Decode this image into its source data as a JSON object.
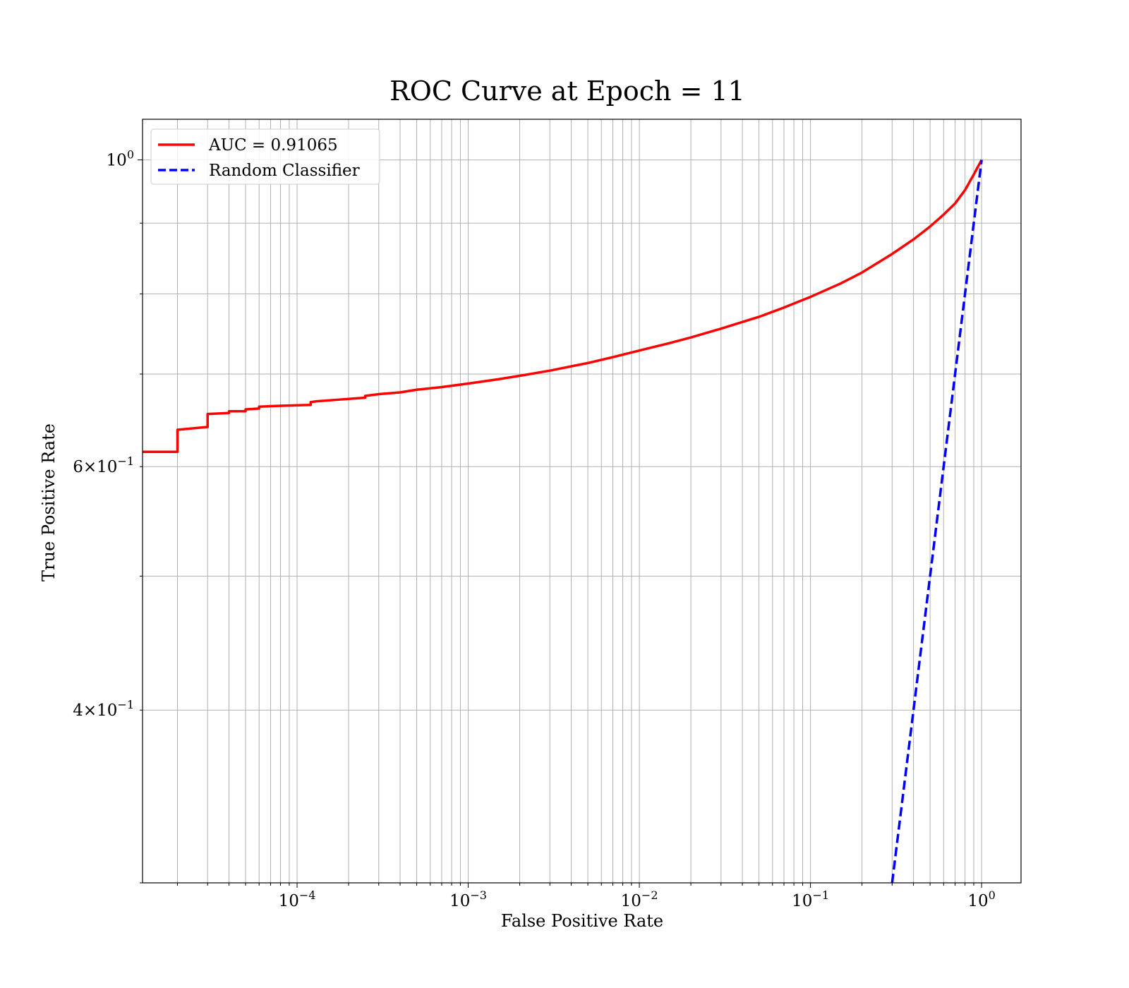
{
  "chart_data": {
    "type": "line",
    "title": "ROC Curve at Epoch = 11",
    "xlabel": "False Positive Rate",
    "ylabel": "True Positive Rate",
    "xscale": "log",
    "yscale": "log",
    "xlim": [
      1.25e-05,
      1.7
    ],
    "ylim": [
      0.3,
      1.07
    ],
    "grid": "on (major and minor, both axes)",
    "legend_position": "top-left",
    "x_ticks": [
      {
        "value": 0.0001,
        "base": "10",
        "exp": "−4"
      },
      {
        "value": 0.001,
        "base": "10",
        "exp": "−3"
      },
      {
        "value": 0.01,
        "base": "10",
        "exp": "−2"
      },
      {
        "value": 0.1,
        "base": "10",
        "exp": "−1"
      },
      {
        "value": 1,
        "base": "10",
        "exp": "0"
      }
    ],
    "y_ticks": [
      {
        "value": 1,
        "base": "10",
        "exp": "0"
      },
      {
        "value": 0.6,
        "base": "6×10",
        "exp": "−1"
      },
      {
        "value": 0.4,
        "base": "4×10",
        "exp": "−1"
      }
    ],
    "series": [
      {
        "name": "AUC = 0.91065",
        "color": "#ff0000",
        "dash": "solid",
        "x": [
          1.25e-05,
          2e-05,
          2e-05,
          3e-05,
          3e-05,
          4e-05,
          4e-05,
          5e-05,
          5e-05,
          6e-05,
          6e-05,
          8e-05,
          0.00012,
          0.00012,
          0.00013,
          0.00018,
          0.00025,
          0.00025,
          0.0003,
          0.0004,
          0.0005,
          0.0007,
          0.001,
          0.0015,
          0.002,
          0.003,
          0.005,
          0.007,
          0.01,
          0.015,
          0.02,
          0.03,
          0.05,
          0.07,
          0.1,
          0.15,
          0.2,
          0.3,
          0.4,
          0.5,
          0.6,
          0.7,
          0.8,
          0.9,
          1.0
        ],
        "y": [
          0.615,
          0.615,
          0.638,
          0.641,
          0.655,
          0.656,
          0.658,
          0.658,
          0.66,
          0.661,
          0.663,
          0.664,
          0.665,
          0.668,
          0.669,
          0.671,
          0.673,
          0.675,
          0.677,
          0.679,
          0.682,
          0.685,
          0.689,
          0.694,
          0.698,
          0.704,
          0.713,
          0.72,
          0.728,
          0.737,
          0.744,
          0.755,
          0.77,
          0.782,
          0.796,
          0.814,
          0.829,
          0.855,
          0.876,
          0.895,
          0.913,
          0.93,
          0.951,
          0.976,
          1.0
        ]
      },
      {
        "name": "Random Classifier",
        "color": "#0000ff",
        "dash": "dashed",
        "x": [
          0.3,
          0.4,
          0.5,
          0.6,
          0.7,
          0.8,
          0.9,
          1.0
        ],
        "y": [
          0.3,
          0.4,
          0.5,
          0.6,
          0.7,
          0.8,
          0.9,
          1.0
        ]
      }
    ]
  }
}
